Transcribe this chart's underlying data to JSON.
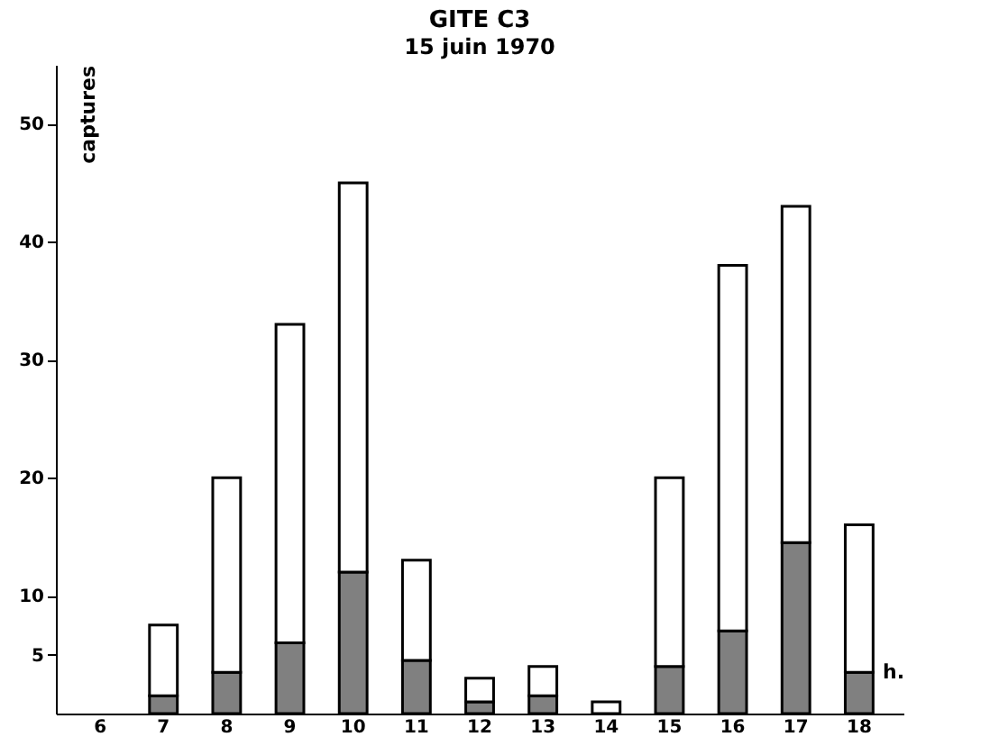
{
  "chart_data": {
    "type": "bar",
    "title": "GITE C3",
    "subtitle": "15 juin 1970",
    "xlabel": "h.",
    "ylabel": "captures",
    "categories": [
      "6",
      "7",
      "8",
      "9",
      "10",
      "11",
      "12",
      "13",
      "14",
      "15",
      "16",
      "17",
      "18"
    ],
    "stacked": true,
    "series": [
      {
        "color": "#808080",
        "values": [
          0,
          1.5,
          3.5,
          6,
          12,
          4.5,
          1,
          1.5,
          0,
          4,
          7,
          14.5,
          3.5
        ]
      },
      {
        "color": "#ffffff",
        "values": [
          0,
          6,
          16.5,
          27,
          33,
          8.5,
          2,
          2.5,
          1,
          16,
          31,
          28.5,
          12.5
        ]
      }
    ],
    "ylim": [
      0,
      55
    ],
    "yticks": [
      5,
      10,
      20,
      30,
      40,
      50
    ],
    "grid": false,
    "legend": false
  }
}
